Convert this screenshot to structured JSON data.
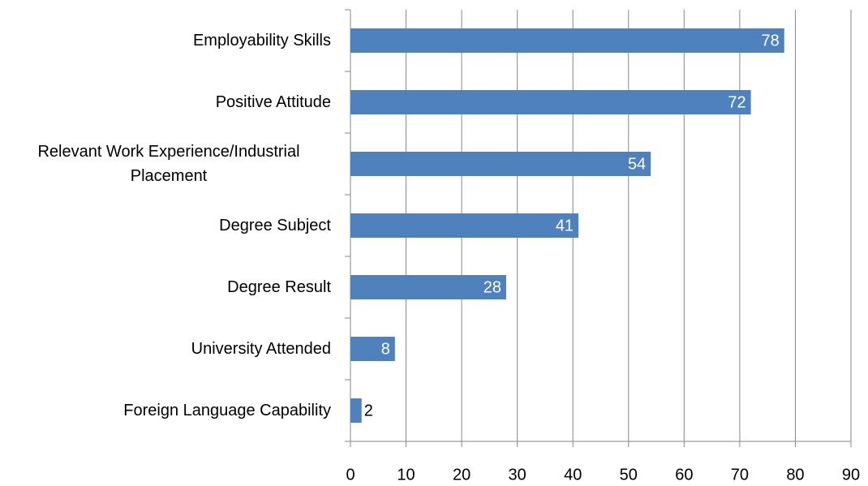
{
  "chart_data": {
    "type": "barh",
    "categories": [
      "Employability Skills",
      "Positive Attitude",
      "Relevant Work Experience/Industrial Placement",
      "Degree Subject",
      "Degree Result",
      "University Attended",
      "Foreign Language Capability"
    ],
    "values": [
      78,
      72,
      54,
      41,
      28,
      8,
      2
    ],
    "color": "#4f81bd",
    "xlim": [
      0,
      90
    ],
    "xticks": [
      0,
      10,
      20,
      30,
      40,
      50,
      60,
      70,
      80,
      90
    ],
    "grid": true
  }
}
